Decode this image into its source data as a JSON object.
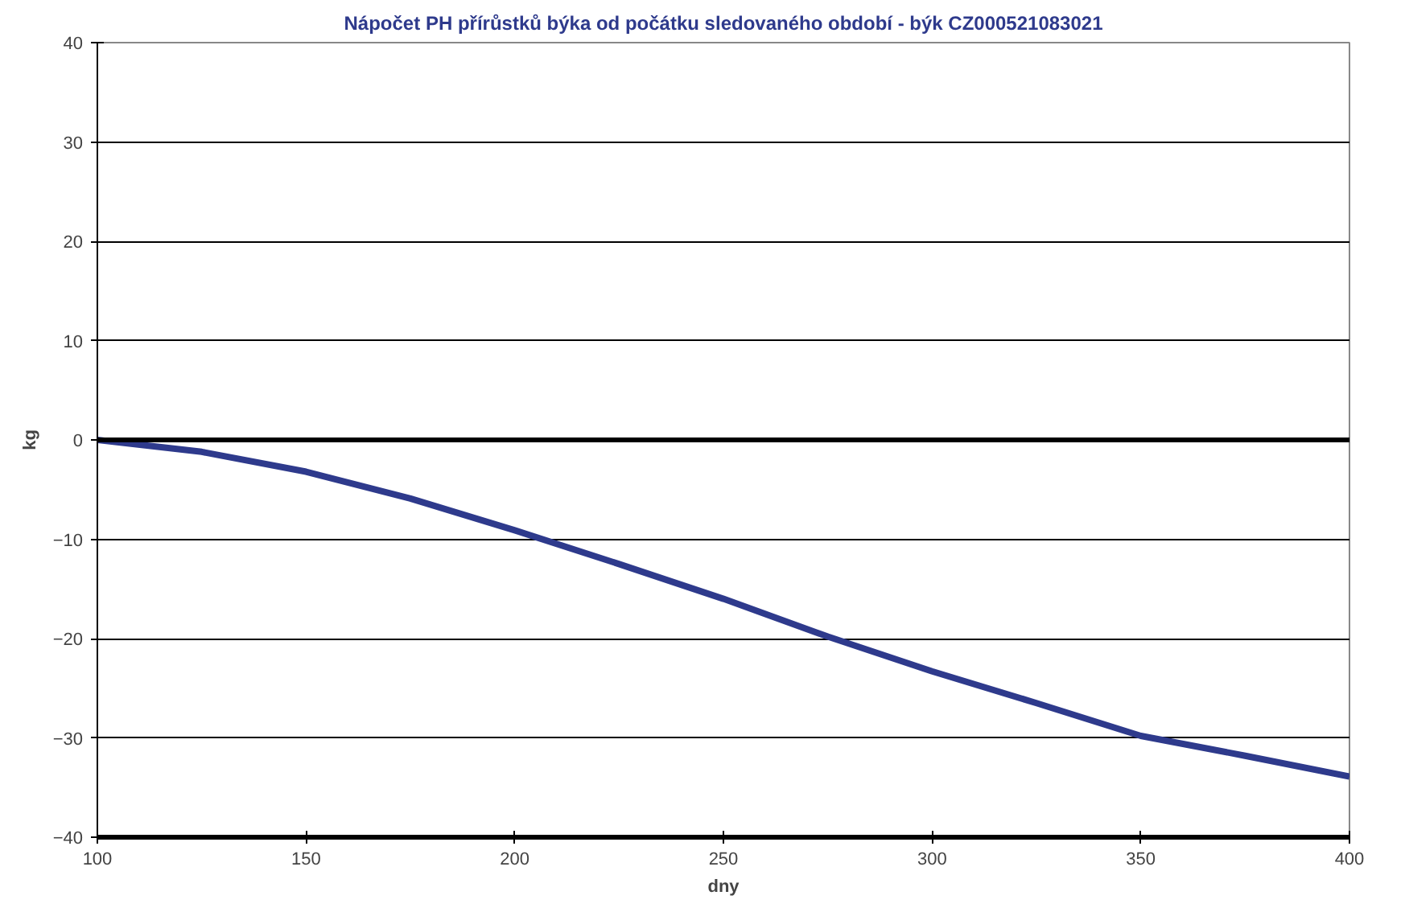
{
  "chart_data": {
    "type": "line",
    "title": "Nápočet PH přírůstků býka od počátku sledovaného období - býk CZ000521083021",
    "xlabel": "dny",
    "ylabel": "kg",
    "x": [
      100,
      125,
      150,
      175,
      200,
      225,
      250,
      275,
      300,
      325,
      350,
      375,
      400
    ],
    "series": [
      {
        "color": "#2e3a8c",
        "values": [
          0,
          -1.2,
          -3.2,
          -5.9,
          -9.1,
          -12.5,
          -16.0,
          -19.8,
          -23.3,
          -26.5,
          -29.8,
          -31.8,
          -33.9
        ]
      }
    ],
    "xlim": [
      100,
      400
    ],
    "ylim": [
      -40,
      40
    ],
    "xticks": [
      100,
      150,
      200,
      250,
      300,
      350,
      400
    ],
    "yticks": [
      -40,
      -30,
      -20,
      -10,
      0,
      10,
      20,
      30,
      40
    ],
    "ref_lines": [
      {
        "axis": "y",
        "value": 0,
        "color": "#000000"
      }
    ],
    "grid": "y",
    "marker": "none",
    "line_style": "solid"
  }
}
